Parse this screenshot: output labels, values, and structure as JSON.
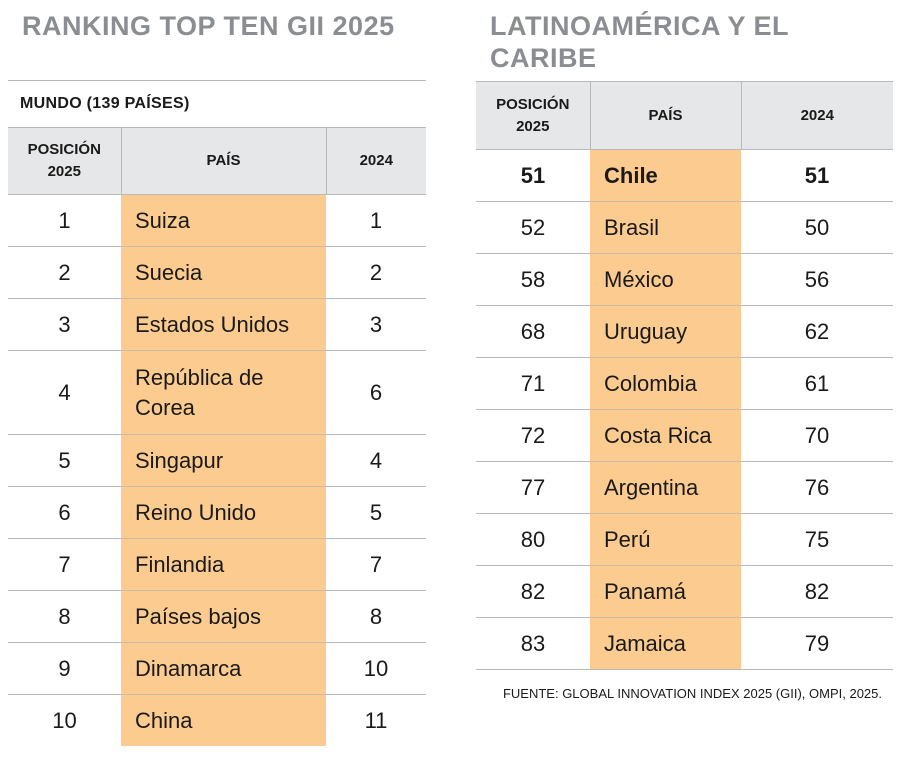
{
  "left_panel": {
    "title": "RANKING TOP TEN GII 2025",
    "subheader": "MUNDO  (139 PAÍSES)",
    "headers": {
      "position": "POSICIÓN 2025",
      "country": "PAÍS",
      "prev": "2024"
    },
    "rows": [
      {
        "pos": "1",
        "country": "Suiza",
        "prev": "1"
      },
      {
        "pos": "2",
        "country": "Suecia",
        "prev": "2"
      },
      {
        "pos": "3",
        "country": "Estados Unidos",
        "prev": "3"
      },
      {
        "pos": "4",
        "country": "República de Corea",
        "prev": "6"
      },
      {
        "pos": "5",
        "country": "Singapur",
        "prev": "4"
      },
      {
        "pos": "6",
        "country": "Reino Unido",
        "prev": "5"
      },
      {
        "pos": "7",
        "country": "Finlandia",
        "prev": "7"
      },
      {
        "pos": "8",
        "country": "Países bajos",
        "prev": "8"
      },
      {
        "pos": "9",
        "country": "Dinamarca",
        "prev": "10"
      },
      {
        "pos": "10",
        "country": "China",
        "prev": "11"
      }
    ]
  },
  "right_panel": {
    "title": "LATINOAMÉRICA Y EL CARIBE",
    "headers": {
      "position": "POSICIÓN 2025",
      "country": "PAÍS",
      "prev": "2024"
    },
    "rows": [
      {
        "pos": "51",
        "country": "Chile",
        "prev": "51"
      },
      {
        "pos": "52",
        "country": "Brasil",
        "prev": "50"
      },
      {
        "pos": "58",
        "country": "México",
        "prev": "56"
      },
      {
        "pos": "68",
        "country": "Uruguay",
        "prev": "62"
      },
      {
        "pos": "71",
        "country": "Colombia",
        "prev": "61"
      },
      {
        "pos": "72",
        "country": "Costa Rica",
        "prev": "70"
      },
      {
        "pos": "77",
        "country": "Argentina",
        "prev": "76"
      },
      {
        "pos": "80",
        "country": "Perú",
        "prev": "75"
      },
      {
        "pos": "82",
        "country": "Panamá",
        "prev": "82"
      },
      {
        "pos": "83",
        "country": "Jamaica",
        "prev": "79"
      }
    ]
  },
  "source": "FUENTE: GLOBAL INNOVATION INDEX 2025 (GII), OMPI, 2025.",
  "colors": {
    "title": "#8a8d91",
    "header_bg": "#e6e7e8",
    "highlight": "#fbcb90",
    "rule": "#b7b9bb"
  }
}
